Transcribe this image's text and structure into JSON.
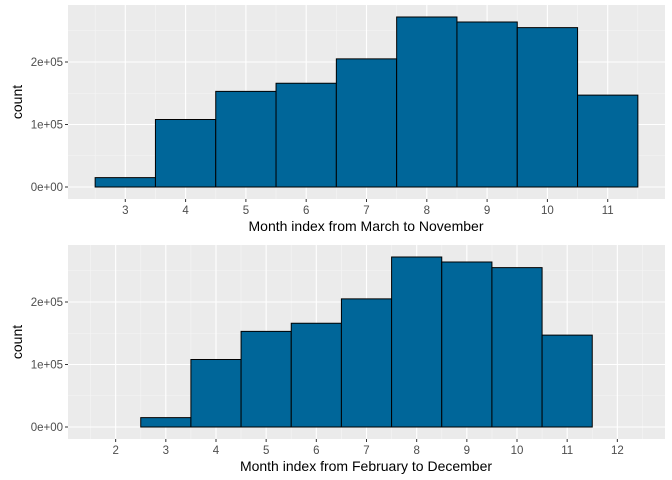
{
  "colors": {
    "panel_background": "#ebebeb",
    "grid_major": "#ffffff",
    "grid_minor": "#f5f5f5",
    "bar_fill": "#006699",
    "bar_outline": "#000000",
    "tick_text": "#4d4d4d",
    "title_text": "#000000"
  },
  "chart_data": [
    {
      "type": "bar",
      "categories": [
        "3",
        "4",
        "5",
        "6",
        "7",
        "8",
        "9",
        "10",
        "11"
      ],
      "x": [
        3,
        4,
        5,
        6,
        7,
        8,
        9,
        10,
        11
      ],
      "values": [
        15000,
        108000,
        153000,
        166000,
        205000,
        272000,
        264000,
        255000,
        147000
      ],
      "xlabel": "Month index from March to November",
      "ylabel": "count",
      "xlim": [
        2.5,
        11.5
      ],
      "ylim": [
        0,
        272000
      ],
      "x_ticks": [
        "3",
        "4",
        "5",
        "6",
        "7",
        "8",
        "9",
        "10",
        "11"
      ],
      "y_ticks": [
        0,
        100000,
        200000
      ],
      "y_tick_labels": [
        "0e+00",
        "1e+05",
        "2e+05"
      ],
      "grid": true,
      "legend": "none"
    },
    {
      "type": "bar",
      "categories": [
        "2",
        "3",
        "4",
        "5",
        "6",
        "7",
        "8",
        "9",
        "10",
        "11",
        "12"
      ],
      "x": [
        2,
        3,
        4,
        5,
        6,
        7,
        8,
        9,
        10,
        11,
        12
      ],
      "values": [
        0,
        15000,
        108000,
        153000,
        166000,
        205000,
        272000,
        264000,
        255000,
        147000,
        0
      ],
      "xlabel": "Month index from February to December",
      "ylabel": "count",
      "xlim": [
        1.5,
        12.5
      ],
      "ylim": [
        0,
        272000
      ],
      "x_ticks": [
        "2",
        "3",
        "4",
        "5",
        "6",
        "7",
        "8",
        "9",
        "10",
        "11",
        "12"
      ],
      "y_ticks": [
        0,
        100000,
        200000
      ],
      "y_tick_labels": [
        "0e+00",
        "1e+05",
        "2e+05"
      ],
      "grid": true,
      "legend": "none"
    }
  ]
}
